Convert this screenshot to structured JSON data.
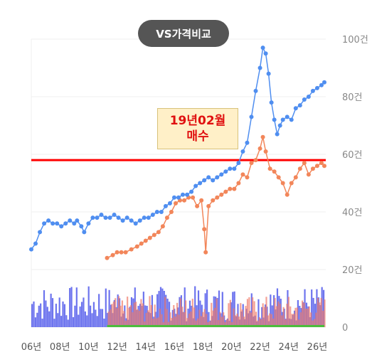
{
  "chart_data": {
    "type": "line",
    "title": "VS가격비교",
    "annotation": {
      "date_line1": "19년02월",
      "date_line2": "매수"
    },
    "colors": {
      "series_a": "#4f8ef0",
      "series_b": "#f2865a",
      "reference_line": "#ff0000",
      "volume_a": "#3c46e8",
      "volume_b": "#f07a6a",
      "volume_c": "#4cbc3c"
    },
    "xlim": [
      2006,
      2026.6
    ],
    "ylim": [
      0,
      100
    ],
    "y_ticks": [
      "0",
      "20건",
      "40건",
      "60건",
      "80건",
      "100건"
    ],
    "y_tick_values": [
      0,
      20,
      40,
      60,
      80,
      100
    ],
    "x_ticks": [
      "06년",
      "08년",
      "10년",
      "12년",
      "14년",
      "16년",
      "18년",
      "20년",
      "22년",
      "24년",
      "26년"
    ],
    "x_tick_values": [
      2006,
      2008,
      2010,
      2012,
      2014,
      2016,
      2018,
      2020,
      2022,
      2024,
      2026
    ],
    "reference_value": 58,
    "series": [
      {
        "values": [
          [
            2006.0,
            27
          ],
          [
            2006.3,
            29
          ],
          [
            2006.6,
            33
          ],
          [
            2006.9,
            36
          ],
          [
            2007.2,
            37
          ],
          [
            2007.5,
            36
          ],
          [
            2007.8,
            36
          ],
          [
            2008.1,
            35
          ],
          [
            2008.4,
            36
          ],
          [
            2008.7,
            37
          ],
          [
            2009.0,
            36
          ],
          [
            2009.2,
            37
          ],
          [
            2009.5,
            35
          ],
          [
            2009.7,
            33
          ],
          [
            2010.0,
            36
          ],
          [
            2010.3,
            38
          ],
          [
            2010.6,
            38
          ],
          [
            2010.9,
            39
          ],
          [
            2011.2,
            38
          ],
          [
            2011.5,
            38
          ],
          [
            2011.8,
            39
          ],
          [
            2012.1,
            38
          ],
          [
            2012.4,
            37
          ],
          [
            2012.7,
            38
          ],
          [
            2013.0,
            37
          ],
          [
            2013.3,
            36
          ],
          [
            2013.6,
            37
          ],
          [
            2013.9,
            38
          ],
          [
            2014.2,
            38
          ],
          [
            2014.5,
            39
          ],
          [
            2014.8,
            40
          ],
          [
            2015.1,
            40
          ],
          [
            2015.4,
            42
          ],
          [
            2015.7,
            43
          ],
          [
            2016.0,
            45
          ],
          [
            2016.3,
            45
          ],
          [
            2016.6,
            46
          ],
          [
            2016.9,
            46
          ],
          [
            2017.2,
            47
          ],
          [
            2017.5,
            49
          ],
          [
            2017.8,
            50
          ],
          [
            2018.1,
            51
          ],
          [
            2018.4,
            52
          ],
          [
            2018.7,
            51
          ],
          [
            2019.0,
            52
          ],
          [
            2019.3,
            53
          ],
          [
            2019.6,
            54
          ],
          [
            2019.9,
            55
          ],
          [
            2020.2,
            55
          ],
          [
            2020.5,
            57
          ],
          [
            2020.8,
            61
          ],
          [
            2021.1,
            64
          ],
          [
            2021.4,
            73
          ],
          [
            2021.7,
            82
          ],
          [
            2022.0,
            90
          ],
          [
            2022.2,
            97
          ],
          [
            2022.4,
            95
          ],
          [
            2022.6,
            88
          ],
          [
            2022.8,
            78
          ],
          [
            2023.0,
            72
          ],
          [
            2023.2,
            67
          ],
          [
            2023.4,
            70
          ],
          [
            2023.6,
            72
          ],
          [
            2023.9,
            73
          ],
          [
            2024.2,
            72
          ],
          [
            2024.5,
            76
          ],
          [
            2024.8,
            77
          ],
          [
            2025.1,
            79
          ],
          [
            2025.4,
            80
          ],
          [
            2025.7,
            82
          ],
          [
            2026.0,
            83
          ],
          [
            2026.3,
            84
          ],
          [
            2026.5,
            85
          ]
        ]
      },
      {
        "values": [
          [
            2011.3,
            24
          ],
          [
            2011.7,
            25
          ],
          [
            2012.0,
            26
          ],
          [
            2012.3,
            26
          ],
          [
            2012.6,
            26
          ],
          [
            2013.0,
            27
          ],
          [
            2013.4,
            28
          ],
          [
            2013.7,
            29
          ],
          [
            2014.0,
            30
          ],
          [
            2014.3,
            31
          ],
          [
            2014.6,
            32
          ],
          [
            2014.9,
            33
          ],
          [
            2015.2,
            35
          ],
          [
            2015.5,
            38
          ],
          [
            2015.8,
            40
          ],
          [
            2016.1,
            43
          ],
          [
            2016.4,
            44
          ],
          [
            2016.7,
            44
          ],
          [
            2017.0,
            45
          ],
          [
            2017.3,
            45
          ],
          [
            2017.6,
            42
          ],
          [
            2017.9,
            44
          ],
          [
            2018.1,
            34
          ],
          [
            2018.2,
            26
          ],
          [
            2018.4,
            42
          ],
          [
            2018.7,
            44
          ],
          [
            2019.0,
            45
          ],
          [
            2019.3,
            46
          ],
          [
            2019.6,
            47
          ],
          [
            2019.9,
            48
          ],
          [
            2020.2,
            48
          ],
          [
            2020.5,
            50
          ],
          [
            2020.8,
            53
          ],
          [
            2021.1,
            52
          ],
          [
            2021.4,
            57
          ],
          [
            2021.7,
            58
          ],
          [
            2022.0,
            62
          ],
          [
            2022.2,
            66
          ],
          [
            2022.4,
            61
          ],
          [
            2022.7,
            55
          ],
          [
            2023.0,
            54
          ],
          [
            2023.3,
            52
          ],
          [
            2023.6,
            50
          ],
          [
            2023.9,
            46
          ],
          [
            2024.2,
            50
          ],
          [
            2024.5,
            52
          ],
          [
            2024.8,
            55
          ],
          [
            2025.1,
            57
          ],
          [
            2025.4,
            53
          ],
          [
            2025.7,
            55
          ],
          [
            2026.0,
            56
          ],
          [
            2026.3,
            57
          ],
          [
            2026.5,
            56
          ]
        ]
      }
    ]
  }
}
